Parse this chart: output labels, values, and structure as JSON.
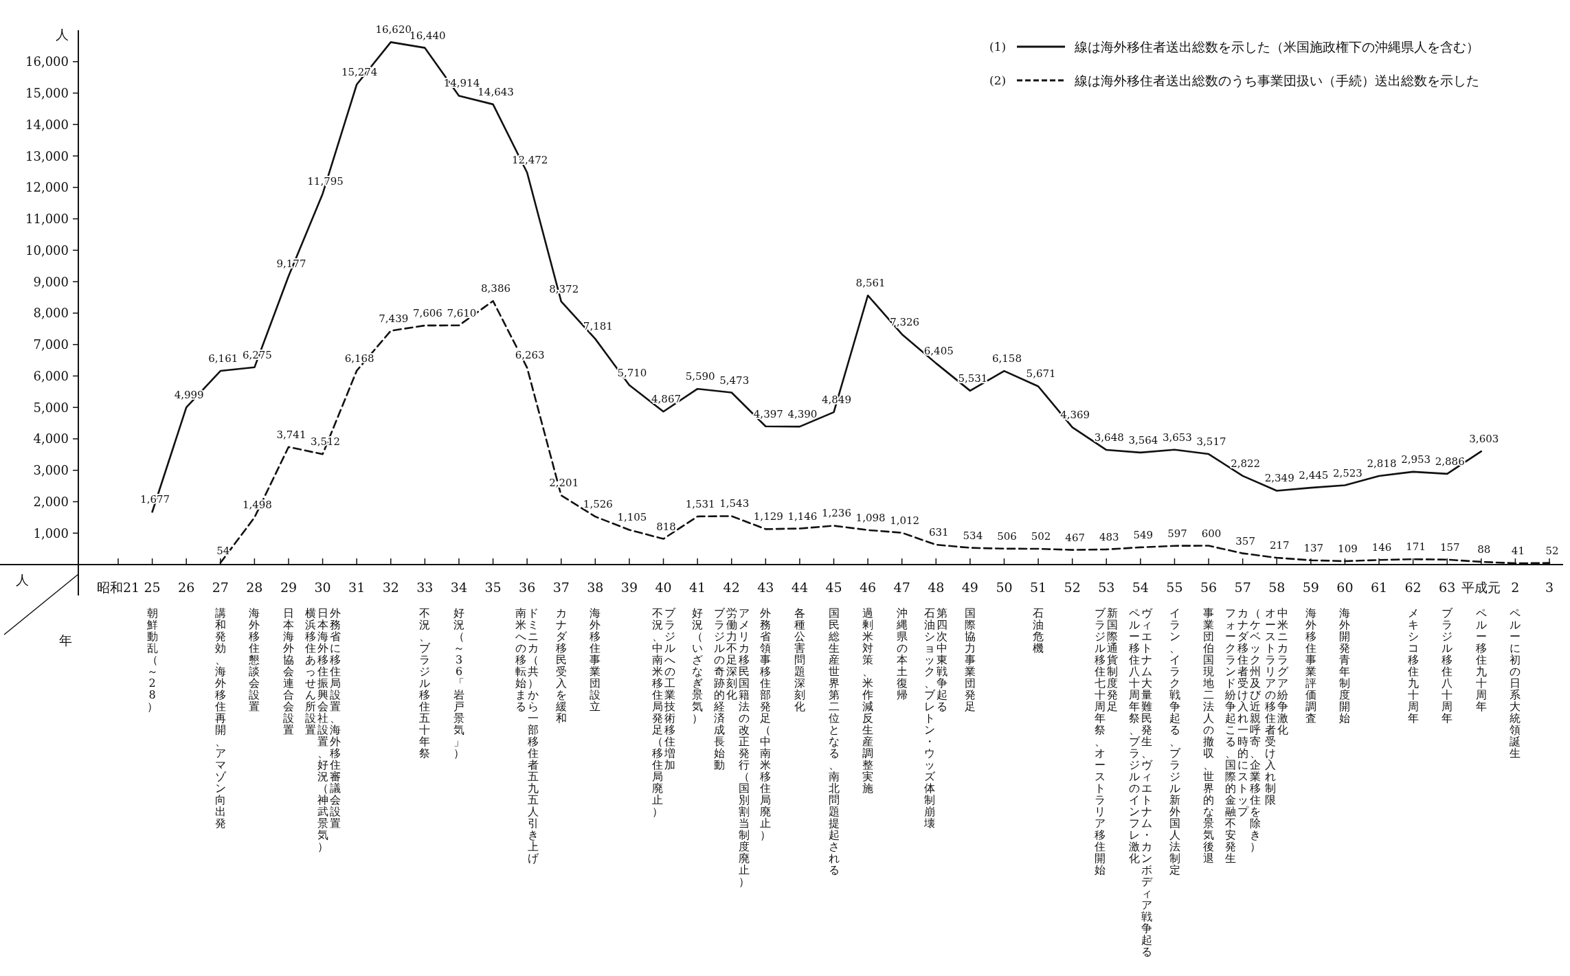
{
  "chart_data": {
    "type": "line",
    "ylabel": "人",
    "categories": [
      "昭和21",
      "25",
      "26",
      "27",
      "28",
      "29",
      "30",
      "31",
      "32",
      "33",
      "34",
      "35",
      "36",
      "37",
      "38",
      "39",
      "40",
      "41",
      "42",
      "43",
      "44",
      "45",
      "46",
      "47",
      "48",
      "49",
      "50",
      "51",
      "52",
      "53",
      "54",
      "55",
      "56",
      "57",
      "58",
      "59",
      "60",
      "61",
      "62",
      "63",
      "平成元",
      "2",
      "3"
    ],
    "series": [
      {
        "name": "線は海外移住者送出総数を示した（米国施政権下の沖縄県人を含む）",
        "color": "#111111",
        "line_style": "solid",
        "values": [
          null,
          1677,
          4999,
          6161,
          6275,
          9177,
          11795,
          15274,
          16620,
          16440,
          14914,
          14643,
          12472,
          8372,
          7181,
          5710,
          4867,
          5590,
          5473,
          4397,
          4390,
          4849,
          8561,
          7326,
          6405,
          5531,
          6158,
          5671,
          4369,
          3648,
          3564,
          3653,
          3517,
          2822,
          2349,
          2445,
          2523,
          2818,
          2953,
          2886,
          3603,
          null,
          null
        ],
        "value_labels": [
          null,
          "1,677",
          "4,999",
          "6,161",
          "6,275",
          "9,177",
          "11,795",
          "15,274",
          "16,620",
          "16,440",
          "14,914",
          "14,643",
          "12,472",
          "8,372",
          "7,181",
          "5,710",
          "4,867",
          "5,590",
          "5,473",
          "4,397",
          "4,390",
          "4,849",
          "8,561",
          "7,326",
          "6,405",
          "5,531",
          "6,158",
          "5,671",
          "4,369",
          "3,648",
          "3,564",
          "3,653",
          "3,517",
          "2,822",
          "2,349",
          "2,445",
          "2,523",
          "2,818",
          "2,953",
          "2,886",
          "3,603",
          null,
          null
        ]
      },
      {
        "name": "線は海外移住者送出総数のうち事業団扱い（手続）送出総数を示した",
        "color": "#111111",
        "line_style": "dashed",
        "values": [
          null,
          null,
          null,
          54,
          1498,
          3741,
          3512,
          6168,
          7439,
          7606,
          7610,
          8386,
          6263,
          2201,
          1526,
          1105,
          818,
          1531,
          1543,
          1129,
          1146,
          1236,
          1098,
          1012,
          631,
          534,
          506,
          502,
          467,
          483,
          549,
          597,
          600,
          357,
          217,
          137,
          109,
          146,
          171,
          157,
          88,
          41,
          52
        ],
        "value_labels": [
          null,
          null,
          null,
          "54",
          "1,498",
          "3,741",
          "3,512",
          "6,168",
          "7,439",
          "7,606",
          "7,610",
          "8,386",
          "6,263",
          "2,201",
          "1,526",
          "1,105",
          "818",
          "1,531",
          "1,543",
          "1,129",
          "1,146",
          "1,236",
          "1,098",
          "1,012",
          "631",
          "534",
          "506",
          "502",
          "467",
          "483",
          "549",
          "597",
          "600",
          "357",
          "217",
          "137",
          "109",
          "146",
          "171",
          "157",
          "88",
          "41",
          "52"
        ]
      }
    ],
    "ylim": [
      0,
      17000
    ],
    "yticks": [
      {
        "value": 1000,
        "label": "1,000"
      },
      {
        "value": 2000,
        "label": "2,000"
      },
      {
        "value": 3000,
        "label": "3,000"
      },
      {
        "value": 4000,
        "label": "4,000"
      },
      {
        "value": 5000,
        "label": "5,000"
      },
      {
        "value": 6000,
        "label": "6,000"
      },
      {
        "value": 7000,
        "label": "7,000"
      },
      {
        "value": 8000,
        "label": "8,000"
      },
      {
        "value": 9000,
        "label": "9,000"
      },
      {
        "value": 10000,
        "label": "10,000"
      },
      {
        "value": 11000,
        "label": "11,000"
      },
      {
        "value": 12000,
        "label": "12,000"
      },
      {
        "value": 13000,
        "label": "13,000"
      },
      {
        "value": 14000,
        "label": "14,000"
      },
      {
        "value": 15000,
        "label": "15,000"
      },
      {
        "value": 16000,
        "label": "16,000"
      }
    ],
    "legend": "top right",
    "marker": "none",
    "annotations": [
      "人",
      "年",
      "(1)",
      "(2)",
      "朝鮮動乱（～28）",
      "講和発効、海外移住再開、アマゾン向出発",
      "海外移住懇談会設置",
      "日本海外協会連合会設置",
      "外務省に移住局設置、海外移住審議会設置",
      "日本海外移住振興会社設置、好況（神武景気）",
      "横浜移住あっせん所設置",
      "不況、ブラジル移住五十年祭",
      "好況（～36「岩戸景気」）",
      "ドミニカ（共）から一部移住者五九五人引き上げ",
      "南米への移転始まる",
      "カナダ移民受入を緩和",
      "海外移住事業団設立",
      "ブラジルへの工業技術移住増加",
      "不況、中南米移住局発足（移住局廃止）",
      "好況（いざなぎ景気）",
      "アメリカ移民国籍法の改正発行（国別割当制度廃止）",
      "労働力不足深刻化",
      "ブラジルの奇跡的経済成長始動",
      "外務省領事移住部発足（中南米移住局廃止）",
      "各種公害問題深刻化",
      "国民総生産世界第二位となる、南北問題提起される",
      "過剰米対策、米作減反生産調整実施",
      "沖縄県の本土復帰",
      "第四次中東戦争起る",
      "石油ショック、ブレトン・ウッズ体制崩壊",
      "国際協力事業団発足",
      "石油危機",
      "新国際通貨制度発足",
      "ブラジル移住七十周年祭、オーストラリア移住開始",
      "ヴィエトナム大量難民発生、ヴィエトナム・カンボディア戦争起る",
      "ペルー移住八十周年祭、ブラジルのインフレ激化",
      "イラン、イラク戦争起る、ブラジル新外国人法制定",
      "事業団伯国現地二法人の撤収、世界的な景気後退",
      "（ケベック州及び近親呼寄、企業移住を除き）",
      "カナダ移住者受け入れ一時的にストップ",
      "フォークランド紛争起こる、国際的金融不安発生",
      "中米ニカラグア紛争激化",
      "オーストラリアの移住者受け入れ制限",
      "海外移住事業評価調査",
      "海外開発青年制度開始",
      "メキシコ移住九十周年",
      "ブラジル移住八十周年",
      "ペルー移住九十周年",
      "ペルーに初の日系大統領誕生"
    ]
  }
}
